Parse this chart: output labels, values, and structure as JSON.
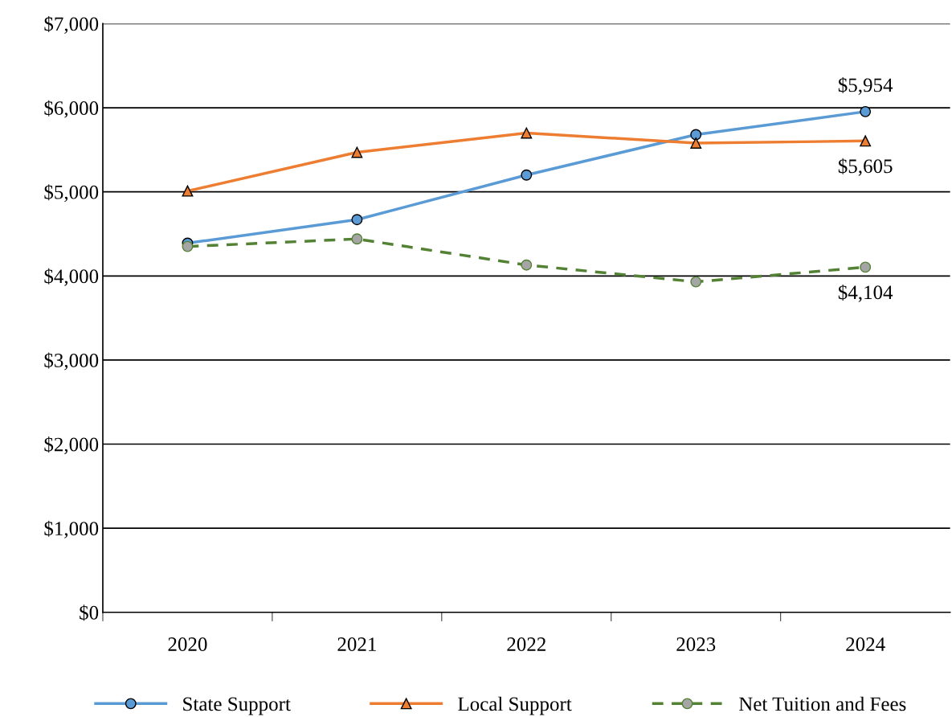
{
  "chart_data": {
    "type": "line",
    "categories": [
      "2020",
      "2021",
      "2022",
      "2023",
      "2024"
    ],
    "series": [
      {
        "name": "State Support",
        "color": "#5b9bd5",
        "marker": "circle",
        "line_style": "solid",
        "values": [
          4390,
          4670,
          5200,
          5680,
          5954
        ],
        "value_labels": [
          null,
          null,
          null,
          null,
          "$5,954"
        ]
      },
      {
        "name": "Local Support",
        "color": "#ed7d31",
        "marker": "triangle",
        "line_style": "solid",
        "values": [
          5010,
          5470,
          5700,
          5580,
          5605
        ],
        "value_labels": [
          null,
          null,
          null,
          null,
          "$5,605"
        ]
      },
      {
        "name": "Net Tuition and Fees",
        "color": "#548235",
        "marker": "circle",
        "line_style": "dashed",
        "values": [
          4350,
          4440,
          4130,
          3930,
          4104
        ],
        "value_labels": [
          null,
          null,
          null,
          null,
          "$4,104"
        ]
      }
    ],
    "ylim": [
      0,
      7000
    ],
    "yticks": [
      {
        "value": 0,
        "label": "$0"
      },
      {
        "value": 1000,
        "label": "$1,000"
      },
      {
        "value": 2000,
        "label": "$2,000"
      },
      {
        "value": 3000,
        "label": "$3,000"
      },
      {
        "value": 4000,
        "label": "$4,000"
      },
      {
        "value": 5000,
        "label": "$5,000"
      },
      {
        "value": 6000,
        "label": "$6,000"
      },
      {
        "value": 7000,
        "label": "$7,000"
      }
    ],
    "grid": "y",
    "legend": "bottom"
  }
}
